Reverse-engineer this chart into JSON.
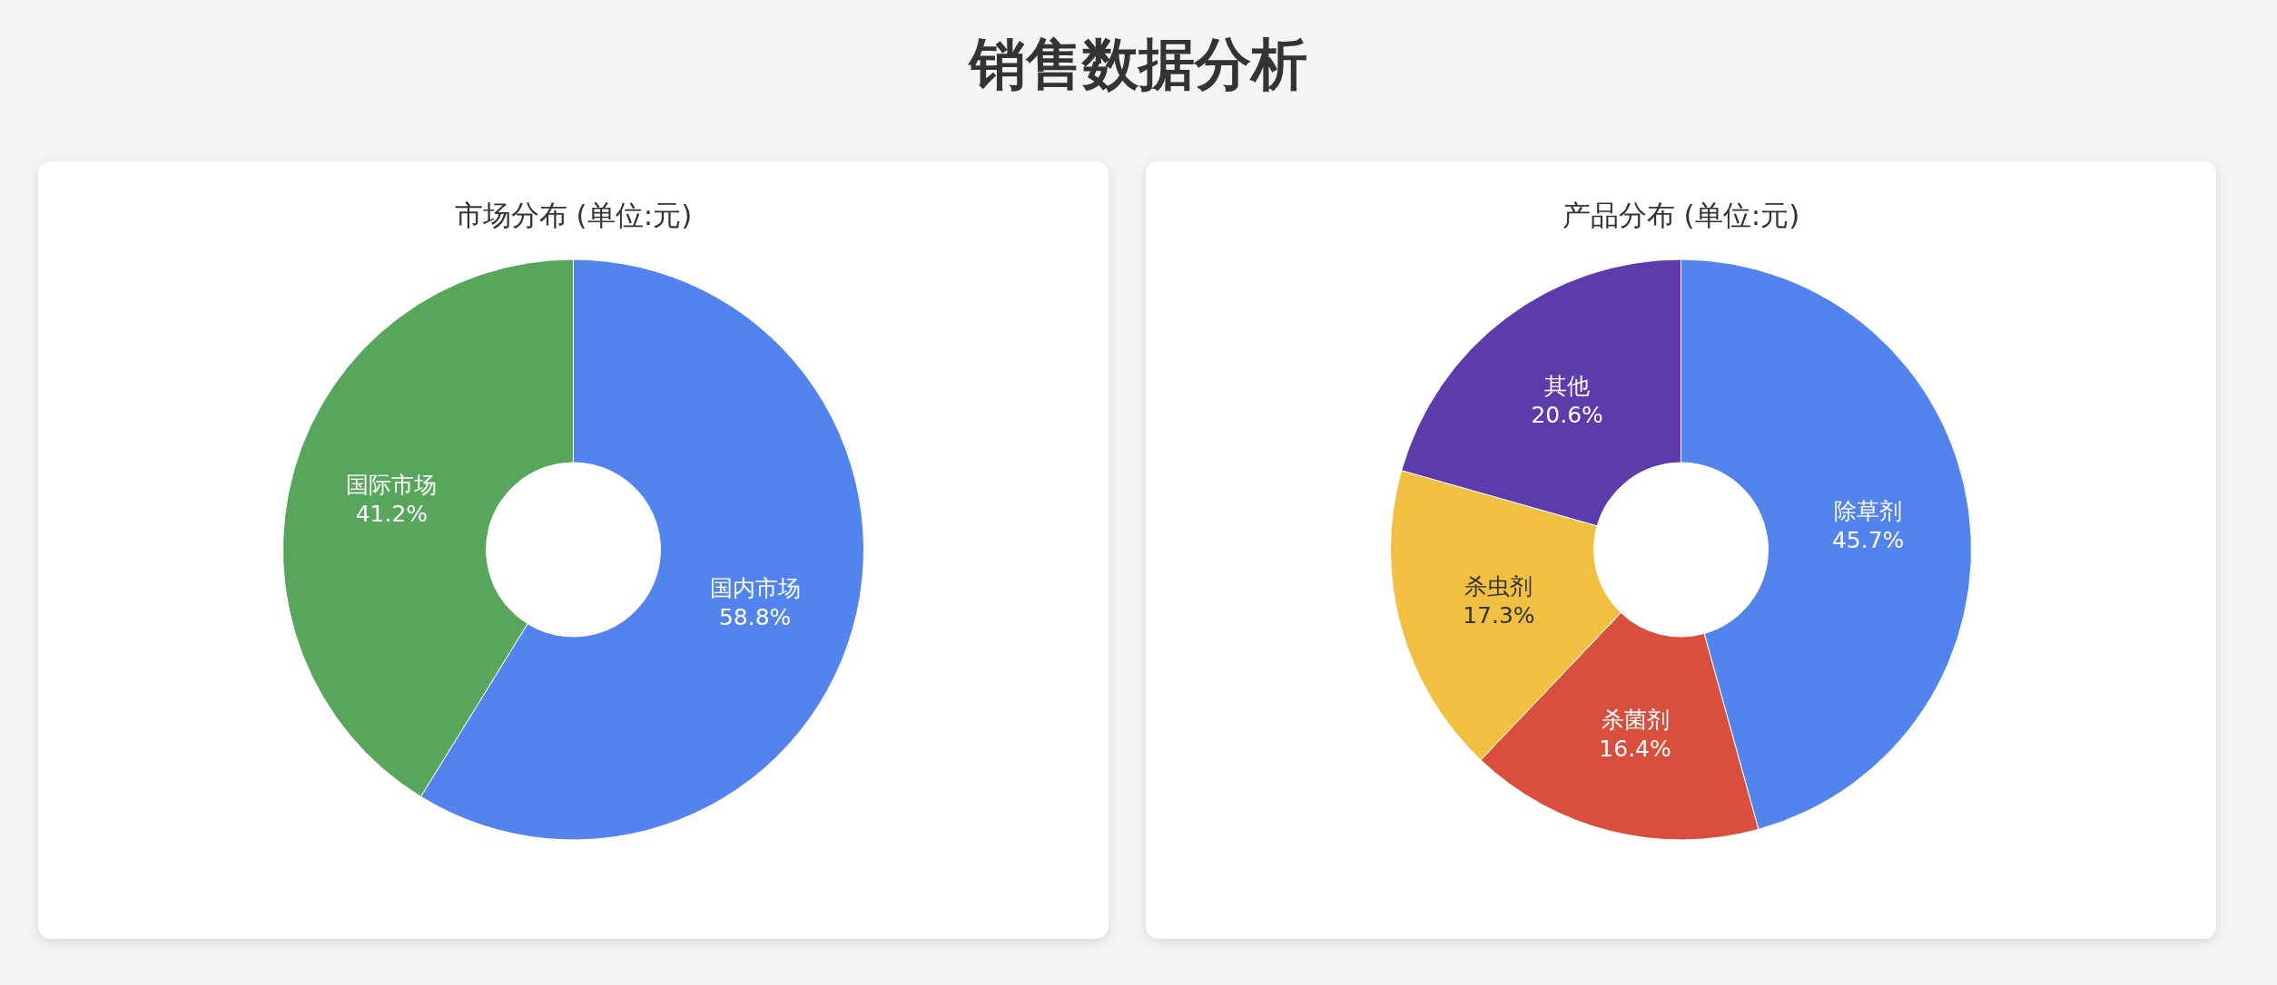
{
  "chart_data": [
    {
      "type": "other",
      "title": "销售数据分析"
    },
    {
      "type": "donut",
      "title": "市场分布 (单位:元)",
      "categories": [
        "国内市场",
        "国际市场"
      ],
      "values": [
        58.8,
        41.2
      ],
      "colors": [
        "#5383ec",
        "#58a55c"
      ],
      "value_labels": [
        "58.8%",
        "41.2%"
      ]
    },
    {
      "type": "donut",
      "title": "产品分布 (单位:元)",
      "categories": [
        "除草剂",
        "杀菌剂",
        "杀虫剂",
        "其他"
      ],
      "values": [
        45.7,
        16.4,
        17.3,
        20.6
      ],
      "colors": [
        "#5383ec",
        "#d94f3d",
        "#f1bf42",
        "#5e3bab"
      ],
      "value_labels": [
        "45.7%",
        "16.4%",
        "17.3%",
        "20.6%"
      ]
    }
  ]
}
